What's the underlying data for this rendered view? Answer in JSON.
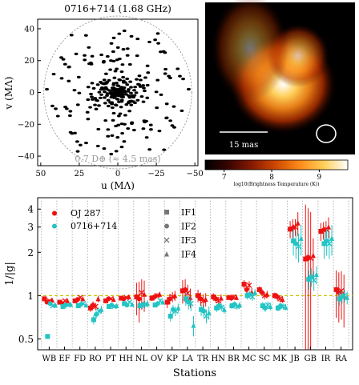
{
  "chart_data": [
    {
      "type": "scatter",
      "title": "0716+714 (1.68 GHz)",
      "xlabel": "u (MΛ)",
      "ylabel": "v (MΛ)",
      "xlim": [
        52,
        -52
      ],
      "ylim": [
        -46,
        46
      ],
      "xticks": [
        50,
        25,
        0,
        -25,
        -50
      ],
      "yticks": [
        40,
        20,
        0,
        -20,
        -40
      ],
      "circle_radius": 48,
      "annotation": "0.7 D⊕ (≈ 4.5 mas)",
      "point_color": "#000000",
      "description_points": "uv-coverage tracks",
      "seed": 7
    },
    {
      "type": "heatmap",
      "colorbar_label": "log10(Brightness Temperature (K))",
      "colorbar_ticks": [
        "7",
        "8",
        "9"
      ],
      "colorbar_range": [
        6.6,
        9.6
      ],
      "scalebar_label": "15 mas",
      "colormap": [
        "#000000",
        "#3a0500",
        "#8a1a00",
        "#d04a00",
        "#ff8c1a",
        "#ffcf5a",
        "#ffffff"
      ],
      "components": [
        {
          "x": 0.52,
          "y": 0.54,
          "sx": 0.22,
          "sy": 0.2,
          "amp": 1.0
        },
        {
          "x": 0.62,
          "y": 0.35,
          "sx": 0.13,
          "sy": 0.13,
          "amp": 0.65
        },
        {
          "x": 0.3,
          "y": 0.3,
          "sx": 0.16,
          "sy": 0.22,
          "amp": 0.45
        }
      ]
    },
    {
      "type": "scatter",
      "xlabel": "Stations",
      "ylabel": "1/|g|",
      "ylim": [
        0.42,
        4.8
      ],
      "yscale": "log",
      "yticks": [
        0.5,
        1,
        2,
        3,
        4
      ],
      "categories": [
        "WB",
        "EF",
        "FD",
        "RO",
        "PT",
        "HH",
        "NL",
        "OV",
        "KP",
        "LA",
        "TR",
        "HN",
        "BR",
        "MC",
        "SC",
        "MK",
        "JB",
        "GB",
        "IR",
        "RA"
      ],
      "legend_sources": [
        {
          "name": "OJ 287",
          "color": "#ee1111"
        },
        {
          "name": "0716+714",
          "color": "#22c4c4"
        }
      ],
      "legend_ifs": [
        {
          "name": "IF1",
          "marker": "square"
        },
        {
          "name": "IF2",
          "marker": "circle"
        },
        {
          "name": "IF3",
          "marker": "x"
        },
        {
          "name": "IF4",
          "marker": "triangle"
        }
      ],
      "series": [
        {
          "source": "OJ 287",
          "values": [
            [
              0.95,
              0.9,
              0.92,
              0.93
            ],
            [
              0.9,
              0.88,
              0.92,
              0.92
            ],
            [
              0.92,
              0.94,
              0.97,
              0.95
            ],
            [
              0.82,
              0.86,
              0.84,
              0.95
            ],
            [
              0.92,
              0.95,
              0.95,
              0.94
            ],
            [
              0.96,
              0.95,
              0.97,
              0.98
            ],
            [
              0.98,
              0.95,
              1.05,
              1.02
            ],
            [
              0.96,
              0.98,
              1.0,
              1.02
            ],
            [
              0.9,
              0.95,
              0.98,
              1.0
            ],
            [
              1.08,
              1.1,
              1.04,
              0.97
            ],
            [
              1.0,
              0.95,
              0.92,
              0.94
            ],
            [
              0.98,
              0.95,
              0.92,
              0.96
            ],
            [
              0.97,
              0.96,
              0.98,
              0.97
            ],
            [
              1.2,
              1.1,
              1.18,
              1.05
            ],
            [
              1.1,
              1.05,
              1.0,
              1.02
            ],
            [
              1.0,
              0.98,
              0.95,
              0.94
            ],
            [
              2.9,
              2.95,
              3.0,
              3.2
            ],
            [
              1.8,
              1.85,
              1.82,
              1.9
            ],
            [
              2.8,
              2.85,
              2.9,
              3.0
            ],
            [
              1.1,
              1.05,
              1.08,
              1.0
            ]
          ],
          "errors": [
            [
              0.02,
              0.02,
              0.02,
              0.02
            ],
            [
              0.02,
              0.02,
              0.02,
              0.02
            ],
            [
              0.02,
              0.02,
              0.02,
              0.02
            ],
            [
              0.05,
              0.05,
              0.05,
              0.05
            ],
            [
              0.02,
              0.02,
              0.02,
              0.02
            ],
            [
              0.02,
              0.02,
              0.02,
              0.02
            ],
            [
              0.25,
              0.3,
              0.25,
              0.25
            ],
            [
              0.04,
              0.04,
              0.04,
              0.04
            ],
            [
              0.08,
              0.08,
              0.08,
              0.08
            ],
            [
              0.2,
              0.2,
              0.15,
              0.15
            ],
            [
              0.1,
              0.1,
              0.1,
              0.1
            ],
            [
              0.06,
              0.06,
              0.06,
              0.06
            ],
            [
              0.04,
              0.04,
              0.04,
              0.04
            ],
            [
              0.08,
              0.08,
              0.08,
              0.08
            ],
            [
              0.06,
              0.06,
              0.06,
              0.06
            ],
            [
              0.05,
              0.05,
              0.05,
              0.05
            ],
            [
              0.4,
              0.45,
              0.4,
              0.6
            ],
            [
              2.5,
              2.2,
              2.0,
              0.6
            ],
            [
              0.4,
              0.4,
              0.4,
              0.5
            ],
            [
              0.4,
              0.4,
              0.4,
              0.4
            ]
          ]
        },
        {
          "source": "0716+714",
          "values": [
            [
              0.52,
              0.88,
              0.85,
              0.86
            ],
            [
              0.84,
              0.86,
              0.86,
              0.87
            ],
            [
              0.85,
              0.87,
              0.88,
              0.86
            ],
            [
              0.68,
              0.74,
              0.78,
              0.8
            ],
            [
              0.84,
              0.86,
              0.84,
              0.85
            ],
            [
              0.88,
              0.86,
              0.9,
              0.87
            ],
            [
              0.85,
              0.86,
              0.87,
              0.88
            ],
            [
              0.86,
              0.88,
              0.92,
              0.9
            ],
            [
              0.72,
              0.8,
              0.78,
              0.82
            ],
            [
              0.95,
              0.9,
              0.88,
              0.62
            ],
            [
              0.8,
              0.78,
              0.72,
              0.76
            ],
            [
              0.82,
              0.85,
              0.83,
              0.8
            ],
            [
              0.85,
              0.87,
              0.84,
              0.86
            ],
            [
              1.0,
              1.02,
              0.98,
              1.05
            ],
            [
              0.85,
              0.82,
              0.86,
              0.84
            ],
            [
              0.82,
              0.85,
              0.84,
              0.83
            ],
            [
              2.4,
              2.3,
              2.2,
              2.5
            ],
            [
              1.3,
              1.35,
              1.28,
              1.4
            ],
            [
              2.3,
              2.4,
              2.3,
              2.5
            ],
            [
              0.95,
              0.98,
              1.0,
              0.97
            ]
          ],
          "errors": [
            [
              0.01,
              0.02,
              0.02,
              0.02
            ],
            [
              0.02,
              0.02,
              0.02,
              0.02
            ],
            [
              0.02,
              0.02,
              0.02,
              0.02
            ],
            [
              0.05,
              0.05,
              0.05,
              0.05
            ],
            [
              0.02,
              0.02,
              0.02,
              0.02
            ],
            [
              0.02,
              0.02,
              0.02,
              0.02
            ],
            [
              0.05,
              0.05,
              0.05,
              0.05
            ],
            [
              0.03,
              0.03,
              0.03,
              0.03
            ],
            [
              0.06,
              0.06,
              0.06,
              0.06
            ],
            [
              0.1,
              0.1,
              0.1,
              0.1
            ],
            [
              0.08,
              0.08,
              0.08,
              0.08
            ],
            [
              0.05,
              0.05,
              0.05,
              0.05
            ],
            [
              0.04,
              0.04,
              0.04,
              0.04
            ],
            [
              0.06,
              0.06,
              0.06,
              0.06
            ],
            [
              0.05,
              0.05,
              0.05,
              0.05
            ],
            [
              0.04,
              0.04,
              0.04,
              0.04
            ],
            [
              0.5,
              0.5,
              0.5,
              0.6
            ],
            [
              0.2,
              0.2,
              0.2,
              0.2
            ],
            [
              0.5,
              0.5,
              0.5,
              0.6
            ],
            [
              0.1,
              0.1,
              0.1,
              0.1
            ]
          ]
        }
      ],
      "reference_line": 1.0,
      "reference_line_color": "#c8c000"
    }
  ]
}
